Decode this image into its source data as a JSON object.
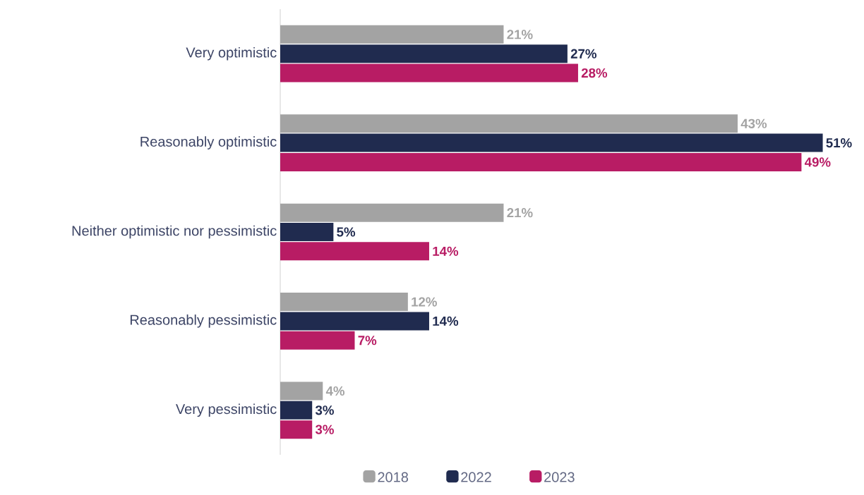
{
  "chart_data": {
    "type": "bar",
    "orientation": "horizontal",
    "tick_labels": "y",
    "categories": [
      "Very optimistic",
      "Reasonably optimistic",
      "Neither optimistic nor pessimistic",
      "Reasonably pessimistic",
      "Very pessimistic"
    ],
    "series": [
      {
        "name": "2018",
        "color": "#a3a3a3",
        "values": [
          21,
          43,
          21,
          12,
          4
        ],
        "value_labels": [
          "21%",
          "43%",
          "21%",
          "12%",
          "4%"
        ]
      },
      {
        "name": "2022",
        "color": "#202b4f",
        "values": [
          27,
          51,
          5,
          14,
          3
        ],
        "value_labels": [
          "27%",
          "51%",
          "5%",
          "14%",
          "3%"
        ]
      },
      {
        "name": "2023",
        "color": "#b81c64",
        "values": [
          28,
          49,
          14,
          7,
          3
        ],
        "value_labels": [
          "28%",
          "49%",
          "14%",
          "7%",
          "3%"
        ]
      }
    ],
    "legend": "bottom"
  }
}
